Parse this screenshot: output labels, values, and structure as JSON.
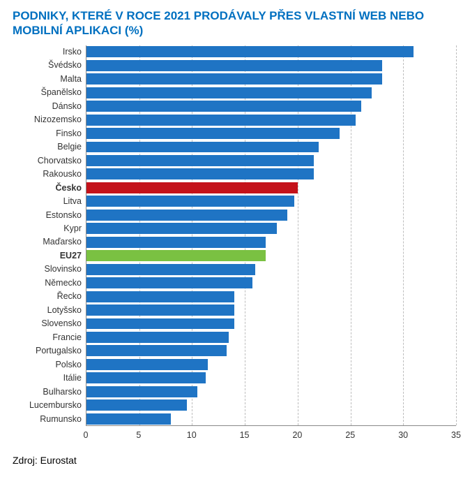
{
  "title": "PODNIKY, KTERÉ V ROCE 2021 PRODÁVALY PŘES VLASTNÍ WEB NEBO MOBILNÍ APLIKACI (%)",
  "title_color": "#0070c0",
  "source_label": "Zdroj: Eurostat",
  "chart": {
    "type": "bar-horizontal",
    "background_color": "#ffffff",
    "axis_color": "#888888",
    "grid_color": "#bdbdbd",
    "label_color": "#333333",
    "label_fontsize": 12.5,
    "xlim": [
      0,
      35
    ],
    "xtick_step": 5,
    "xticks": [
      0,
      5,
      10,
      15,
      20,
      25,
      30,
      35
    ],
    "bar_gap_ratio": 0.18,
    "default_bar_color": "#1f74c4",
    "highlight_colors": {
      "cesko": "#c4121a",
      "eu27": "#7ac142"
    },
    "series": [
      {
        "label": "Irsko",
        "value": 31.0,
        "color": "#1f74c4",
        "bold": false
      },
      {
        "label": "Švédsko",
        "value": 28.0,
        "color": "#1f74c4",
        "bold": false
      },
      {
        "label": "Malta",
        "value": 28.0,
        "color": "#1f74c4",
        "bold": false
      },
      {
        "label": "Španělsko",
        "value": 27.0,
        "color": "#1f74c4",
        "bold": false
      },
      {
        "label": "Dánsko",
        "value": 26.0,
        "color": "#1f74c4",
        "bold": false
      },
      {
        "label": "Nizozemsko",
        "value": 25.5,
        "color": "#1f74c4",
        "bold": false
      },
      {
        "label": "Finsko",
        "value": 24.0,
        "color": "#1f74c4",
        "bold": false
      },
      {
        "label": "Belgie",
        "value": 22.0,
        "color": "#1f74c4",
        "bold": false
      },
      {
        "label": "Chorvatsko",
        "value": 21.5,
        "color": "#1f74c4",
        "bold": false
      },
      {
        "label": "Rakousko",
        "value": 21.5,
        "color": "#1f74c4",
        "bold": false
      },
      {
        "label": "Česko",
        "value": 20.0,
        "color": "#c4121a",
        "bold": true
      },
      {
        "label": "Litva",
        "value": 19.7,
        "color": "#1f74c4",
        "bold": false
      },
      {
        "label": "Estonsko",
        "value": 19.0,
        "color": "#1f74c4",
        "bold": false
      },
      {
        "label": "Kypr",
        "value": 18.0,
        "color": "#1f74c4",
        "bold": false
      },
      {
        "label": "Maďarsko",
        "value": 17.0,
        "color": "#1f74c4",
        "bold": false
      },
      {
        "label": "EU27",
        "value": 17.0,
        "color": "#7ac142",
        "bold": true
      },
      {
        "label": "Slovinsko",
        "value": 16.0,
        "color": "#1f74c4",
        "bold": false
      },
      {
        "label": "Německo",
        "value": 15.7,
        "color": "#1f74c4",
        "bold": false
      },
      {
        "label": "Řecko",
        "value": 14.0,
        "color": "#1f74c4",
        "bold": false
      },
      {
        "label": "Lotyšsko",
        "value": 14.0,
        "color": "#1f74c4",
        "bold": false
      },
      {
        "label": "Slovensko",
        "value": 14.0,
        "color": "#1f74c4",
        "bold": false
      },
      {
        "label": "Francie",
        "value": 13.5,
        "color": "#1f74c4",
        "bold": false
      },
      {
        "label": "Portugalsko",
        "value": 13.3,
        "color": "#1f74c4",
        "bold": false
      },
      {
        "label": "Polsko",
        "value": 11.5,
        "color": "#1f74c4",
        "bold": false
      },
      {
        "label": "Itálie",
        "value": 11.3,
        "color": "#1f74c4",
        "bold": false
      },
      {
        "label": "Bulharsko",
        "value": 10.5,
        "color": "#1f74c4",
        "bold": false
      },
      {
        "label": "Lucembursko",
        "value": 9.5,
        "color": "#1f74c4",
        "bold": false
      },
      {
        "label": "Rumunsko",
        "value": 8.0,
        "color": "#1f74c4",
        "bold": false
      }
    ]
  }
}
